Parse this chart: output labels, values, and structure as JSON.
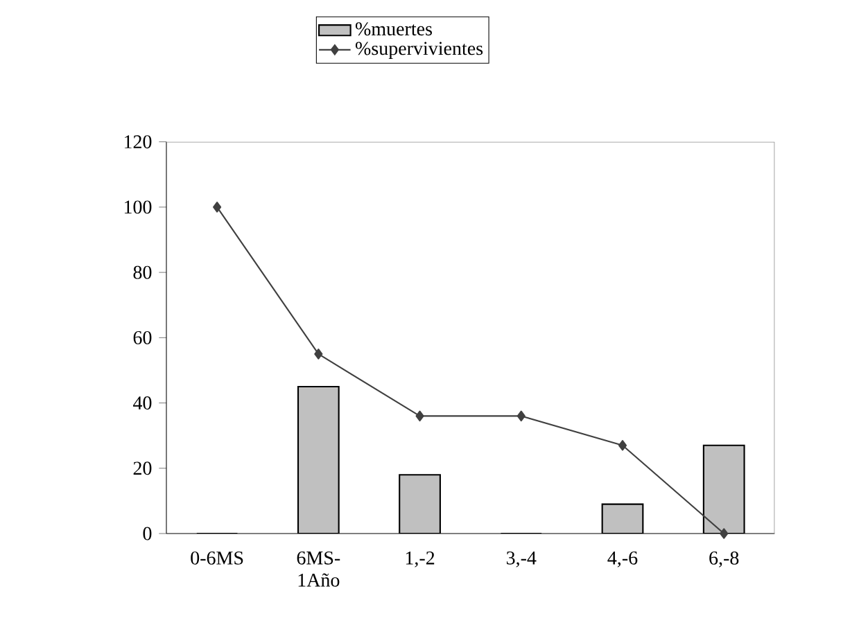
{
  "chart_data": {
    "type": "bar",
    "categories": [
      "0-6MS",
      "6MS-1Año",
      "1,-2",
      "3,-4",
      "4,-6",
      "6,-8"
    ],
    "series": [
      {
        "name": "%muertes",
        "color": "#c0c0c0",
        "values": [
          0,
          45,
          18,
          0,
          9,
          27
        ]
      },
      {
        "name": "%supervivientes",
        "type": "line",
        "color": "#404040",
        "marker": "diamond",
        "values": [
          100,
          55,
          36,
          36,
          27,
          0
        ]
      }
    ],
    "ylim": [
      0,
      120
    ],
    "yticks": [
      0,
      20,
      40,
      60,
      80,
      100,
      120
    ],
    "grid": false,
    "legend": "top"
  }
}
